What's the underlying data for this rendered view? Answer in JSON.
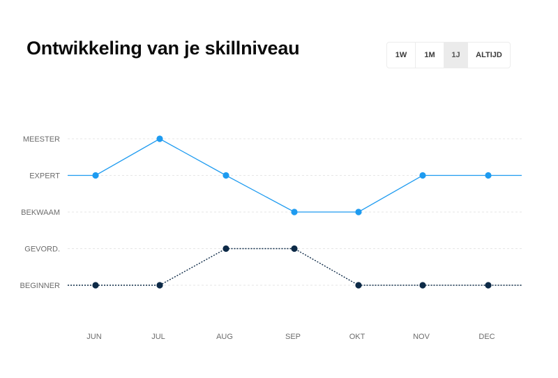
{
  "title": "Ontwikkeling van je skillniveau",
  "range_tabs": [
    {
      "label": "1W",
      "active": false
    },
    {
      "label": "1M",
      "active": false
    },
    {
      "label": "1J",
      "active": true
    },
    {
      "label": "ALTIJD",
      "active": false
    }
  ],
  "colors": {
    "series_1": "#1e9bf0",
    "series_2": "#0d2a47",
    "grid": "#e6e6e6",
    "active_tab_bg": "#ebebeb"
  },
  "chart_data": {
    "type": "line",
    "categories": [
      "JUN",
      "JUL",
      "AUG",
      "SEP",
      "OKT",
      "NOV",
      "DEC"
    ],
    "y_levels": [
      "BEGINNER",
      "GEVORD.",
      "BEKWAAM",
      "EXPERT",
      "MEESTER"
    ],
    "grid": true,
    "series": [
      {
        "line_style": "solid",
        "color": "#1e9bf0",
        "values": [
          4,
          5,
          4,
          3,
          3,
          4,
          4
        ]
      },
      {
        "line_style": "dotted",
        "color": "#0d2a47",
        "values": [
          1,
          1,
          2,
          2,
          1,
          1,
          1
        ]
      }
    ]
  }
}
